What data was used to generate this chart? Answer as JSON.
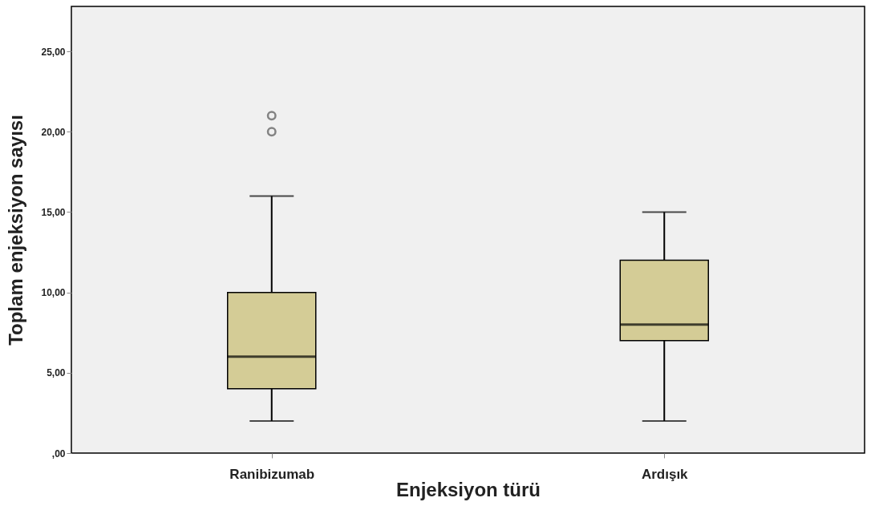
{
  "chart_data": {
    "type": "box",
    "xlabel": "Enjeksiyon türü",
    "ylabel": "Toplam enjeksiyon sayısı",
    "categories": [
      "Ranibizumab",
      "Ardışık"
    ],
    "boxes": [
      {
        "low": 2,
        "q1": 4,
        "median": 6,
        "q3": 10,
        "high": 16,
        "outliers": [
          20,
          21
        ]
      },
      {
        "low": 2,
        "q1": 7,
        "median": 8,
        "q3": 12,
        "high": 15
      }
    ],
    "color": "#d4cc96",
    "ylim": [
      0,
      27.8
    ],
    "yticks": [
      {
        "value": 0,
        "label": ",00"
      },
      {
        "value": 5,
        "label": "5,00"
      },
      {
        "value": 10,
        "label": "10,00"
      },
      {
        "value": 15,
        "label": "15,00"
      },
      {
        "value": 20,
        "label": "20,00"
      },
      {
        "value": 25,
        "label": "25,00"
      }
    ],
    "grid": false
  }
}
